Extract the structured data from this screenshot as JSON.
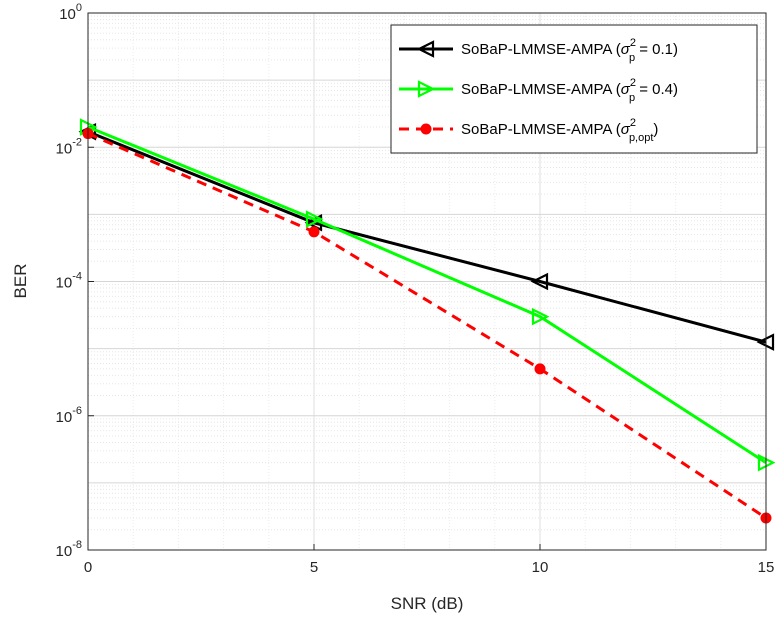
{
  "chart_data": {
    "type": "line",
    "title": "",
    "xlabel": "SNR (dB)",
    "ylabel": "BER",
    "xlim": [
      0,
      15
    ],
    "ylim": [
      1e-08,
      1
    ],
    "yscale": "log",
    "grid": true,
    "minor_grid": true,
    "legend_position": "top-right",
    "x_ticks": [
      0,
      5,
      10,
      15
    ],
    "y_ticks": [
      {
        "base": "10",
        "exp": "0",
        "value": 1
      },
      {
        "base": "10",
        "exp": "-2",
        "value": 0.01
      },
      {
        "base": "10",
        "exp": "-4",
        "value": 0.0001
      },
      {
        "base": "10",
        "exp": "-6",
        "value": 1e-06
      },
      {
        "base": "10",
        "exp": "-8",
        "value": 1e-08
      }
    ],
    "series": [
      {
        "legend_prefix": "SoBaP-LMMSE-AMPA (",
        "legend_sigma": "σ",
        "legend_sup": "2",
        "legend_sub": "p",
        "legend_suffix": " = 0.1)",
        "color": "#000000",
        "marker": "triangle-left",
        "dashed": false,
        "x": [
          0,
          5,
          10,
          15
        ],
        "values": [
          0.017,
          0.00075,
          0.0001,
          1.25e-05
        ]
      },
      {
        "legend_prefix": "SoBaP-LMMSE-AMPA (",
        "legend_sigma": "σ",
        "legend_sup": "2",
        "legend_sub": "p",
        "legend_suffix": " = 0.4)",
        "color": "#00ff00",
        "marker": "triangle-right",
        "dashed": false,
        "x": [
          0,
          5,
          10,
          15
        ],
        "values": [
          0.02,
          0.00085,
          3e-05,
          2e-07
        ]
      },
      {
        "legend_prefix": "SoBaP-LMMSE-AMPA (",
        "legend_sigma": "σ",
        "legend_sup": "2",
        "legend_sub": "p,opt",
        "legend_suffix": ")",
        "color": "#ff0000",
        "marker": "circle",
        "dashed": true,
        "x": [
          0,
          5,
          10,
          15
        ],
        "values": [
          0.016,
          0.00055,
          5e-06,
          3e-08
        ]
      }
    ]
  }
}
